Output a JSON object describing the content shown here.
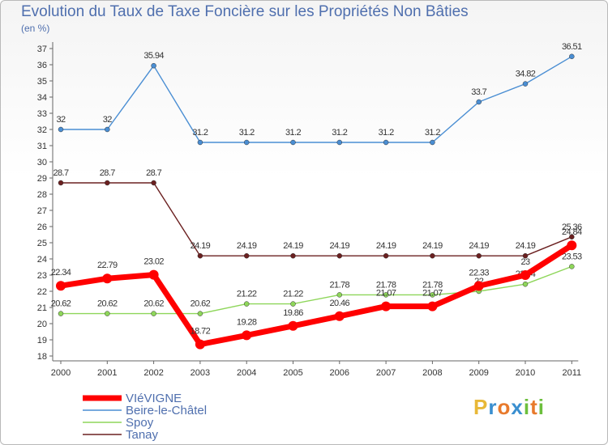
{
  "chart_data": {
    "type": "line",
    "title": "Evolution du Taux de Taxe Foncière sur les Propriétés Non Bâties",
    "ylabel": "(en %)",
    "xlabel": "",
    "categories": [
      "2000",
      "2001",
      "2002",
      "2003",
      "2004",
      "2005",
      "2006",
      "2007",
      "2008",
      "2009",
      "2010",
      "2011"
    ],
    "ylim": [
      18,
      37
    ],
    "yticks": [
      18,
      19,
      20,
      21,
      22,
      23,
      24,
      25,
      26,
      27,
      28,
      29,
      30,
      31,
      32,
      33,
      34,
      35,
      36,
      37
    ],
    "grid": false,
    "legend": "bottom-left",
    "series": [
      {
        "name": "VIéVIGNE",
        "color": "#ff0000",
        "values": [
          22.34,
          22.79,
          23.02,
          18.72,
          19.28,
          19.86,
          20.46,
          21.07,
          21.07,
          22.33,
          23,
          24.84
        ],
        "labels": [
          "22.34",
          "22.79",
          "23.02",
          "18.72",
          "19.28",
          "19.86",
          "20.46",
          "21.07",
          "21.07",
          "22.33",
          "23",
          "24.84"
        ]
      },
      {
        "name": "Beire-le-Châtel",
        "color": "#4a8ed3",
        "values": [
          32,
          32,
          35.94,
          31.2,
          31.2,
          31.2,
          31.2,
          31.2,
          31.2,
          33.7,
          34.82,
          36.51
        ],
        "labels": [
          "32",
          "32",
          "35.94",
          "31.2",
          "31.2",
          "31.2",
          "31.2",
          "31.2",
          "31.2",
          "33.7",
          "34.82",
          "36.51"
        ]
      },
      {
        "name": "Spoy",
        "color": "#8ed65a",
        "values": [
          20.62,
          20.62,
          20.62,
          20.62,
          21.22,
          21.22,
          21.78,
          21.78,
          21.78,
          22,
          22.44,
          23.53
        ],
        "labels": [
          "20.62",
          "20.62",
          "20.62",
          "20.62",
          "21.22",
          "21.22",
          "21.78",
          "21.78",
          "21.78",
          "22",
          "22.44",
          "23.53"
        ]
      },
      {
        "name": "Tanay",
        "color": "#6b2020",
        "values": [
          28.7,
          28.7,
          28.7,
          24.19,
          24.19,
          24.19,
          24.19,
          24.19,
          24.19,
          24.19,
          24.19,
          25.36
        ],
        "labels": [
          "28.7",
          "28.7",
          "28.7",
          "24.19",
          "24.19",
          "24.19",
          "24.19",
          "24.19",
          "24.19",
          "24.19",
          "24.19",
          "25.36"
        ]
      }
    ]
  },
  "logo": {
    "text": "Proxiti",
    "letters": [
      "P",
      "r",
      "o",
      "x",
      "i",
      "t",
      "i"
    ],
    "colors": [
      "#e8b838",
      "#3a8fd0",
      "#e87a2c",
      "#3a8fd0",
      "#6cbf3c",
      "#e87a2c",
      "#6cbf3c"
    ]
  }
}
